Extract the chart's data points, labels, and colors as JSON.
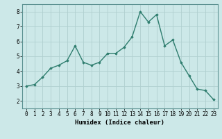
{
  "x": [
    0,
    1,
    2,
    3,
    4,
    5,
    6,
    7,
    8,
    9,
    10,
    11,
    12,
    13,
    14,
    15,
    16,
    17,
    18,
    19,
    20,
    21,
    22,
    23
  ],
  "y": [
    3.0,
    3.1,
    3.6,
    4.2,
    4.4,
    4.7,
    5.7,
    4.6,
    4.4,
    4.6,
    5.2,
    5.2,
    5.6,
    6.3,
    8.0,
    7.3,
    7.8,
    5.7,
    6.1,
    4.6,
    3.7,
    2.8,
    2.7,
    2.1
  ],
  "line_color": "#2e7d6e",
  "marker": "D",
  "marker_size": 1.8,
  "linewidth": 1.0,
  "xlabel": "Humidex (Indice chaleur)",
  "xlim": [
    -0.5,
    23.5
  ],
  "ylim": [
    1.5,
    8.5
  ],
  "xtick_labels": [
    "0",
    "1",
    "2",
    "3",
    "4",
    "5",
    "6",
    "7",
    "8",
    "9",
    "10",
    "11",
    "12",
    "13",
    "14",
    "15",
    "16",
    "17",
    "18",
    "19",
    "20",
    "21",
    "22",
    "23"
  ],
  "yticks": [
    2,
    3,
    4,
    5,
    6,
    7,
    8
  ],
  "bg_color": "#cce8e8",
  "grid_color": "#b0d0d0",
  "xlabel_fontsize": 6.5,
  "tick_fontsize": 5.5,
  "spine_color": "#5a9090"
}
